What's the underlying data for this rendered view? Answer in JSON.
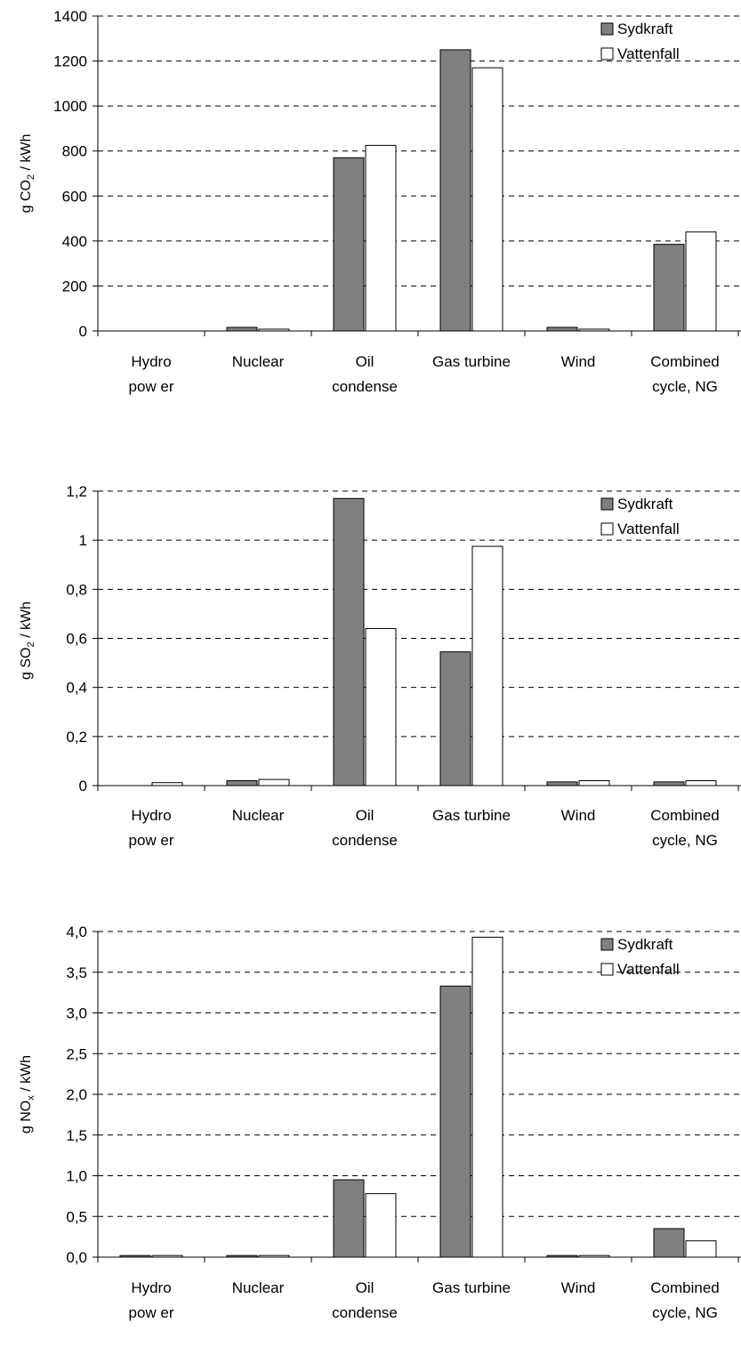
{
  "chart_data": [
    {
      "type": "bar",
      "ylabel_parts": [
        "g CO",
        "2",
        " / kWh"
      ],
      "categories": [
        [
          "Hydro",
          "pow er"
        ],
        [
          "Nuclear"
        ],
        [
          "Oil",
          "condense"
        ],
        [
          "Gas turbine"
        ],
        [
          "Wind"
        ],
        [
          "Combined",
          "cycle, NG"
        ]
      ],
      "series": [
        {
          "name": "Sydkraft",
          "color": "#808080",
          "values": [
            0,
            16,
            770,
            1250,
            16,
            385
          ]
        },
        {
          "name": "Vattenfall",
          "color": "#ffffff",
          "values": [
            0,
            8,
            825,
            1170,
            8,
            440
          ]
        }
      ],
      "ylim": [
        0,
        1400
      ],
      "yticks": [
        0,
        200,
        400,
        600,
        800,
        1000,
        1200,
        1400
      ],
      "ytick_labels": [
        "0",
        "200",
        "400",
        "600",
        "800",
        "1000",
        "1200",
        "1400"
      ],
      "grid": "dashed",
      "legend": "top-right"
    },
    {
      "type": "bar",
      "ylabel_parts": [
        "g SO",
        "2",
        " / kWh"
      ],
      "categories": [
        [
          "Hydro",
          "pow er"
        ],
        [
          "Nuclear"
        ],
        [
          "Oil",
          "condense"
        ],
        [
          "Gas turbine"
        ],
        [
          "Wind"
        ],
        [
          "Combined",
          "cycle, NG"
        ]
      ],
      "series": [
        {
          "name": "Sydkraft",
          "color": "#808080",
          "values": [
            0,
            0.02,
            1.17,
            0.545,
            0.015,
            0.015
          ]
        },
        {
          "name": "Vattenfall",
          "color": "#ffffff",
          "values": [
            0.012,
            0.025,
            0.64,
            0.975,
            0.02,
            0.02
          ]
        }
      ],
      "ylim": [
        0,
        1.2
      ],
      "yticks": [
        0,
        0.2,
        0.4,
        0.6,
        0.8,
        1.0,
        1.2
      ],
      "ytick_labels": [
        "0",
        "0,2",
        "0,4",
        "0,6",
        "0,8",
        "1",
        "1,2"
      ],
      "grid": "dashed",
      "legend": "top-right"
    },
    {
      "type": "bar",
      "ylabel_parts": [
        "g NO",
        "x",
        " / kWh"
      ],
      "categories": [
        [
          "Hydro",
          "pow er"
        ],
        [
          "Nuclear"
        ],
        [
          "Oil",
          "condense"
        ],
        [
          "Gas turbine"
        ],
        [
          "Wind"
        ],
        [
          "Combined",
          "cycle, NG"
        ]
      ],
      "series": [
        {
          "name": "Sydkraft",
          "color": "#808080",
          "values": [
            0.02,
            0.02,
            0.95,
            3.33,
            0.02,
            0.35
          ]
        },
        {
          "name": "Vattenfall",
          "color": "#ffffff",
          "values": [
            0.02,
            0.02,
            0.78,
            3.93,
            0.02,
            0.2
          ]
        }
      ],
      "ylim": [
        0,
        4.0
      ],
      "yticks": [
        0,
        0.5,
        1.0,
        1.5,
        2.0,
        2.5,
        3.0,
        3.5,
        4.0
      ],
      "ytick_labels": [
        "0,0",
        "0,5",
        "1,0",
        "1,5",
        "2,0",
        "2,5",
        "3,0",
        "3,5",
        "4,0"
      ],
      "grid": "dashed",
      "legend": "top-right"
    }
  ]
}
